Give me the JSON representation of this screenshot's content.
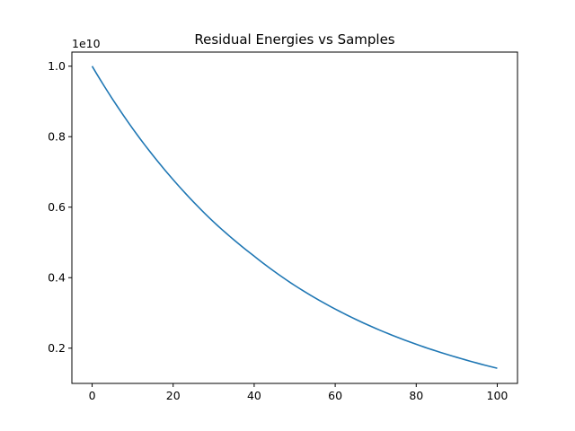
{
  "chart_data": {
    "type": "line",
    "title": "Residual Energies vs Samples",
    "xlabel": "",
    "ylabel": "",
    "offset_label": "1e10",
    "xlim": [
      -5,
      105
    ],
    "ylim": [
      0.1,
      1.04
    ],
    "xticks": [
      0,
      20,
      40,
      60,
      80,
      100
    ],
    "xtick_labels": [
      "0",
      "20",
      "40",
      "60",
      "80",
      "100"
    ],
    "yticks": [
      0.2,
      0.4,
      0.6,
      0.8,
      1.0
    ],
    "ytick_labels": [
      "0.2",
      "0.4",
      "0.6",
      "0.8",
      "1.0"
    ],
    "grid": false,
    "series": [
      {
        "color": "#1f77b4",
        "x": [
          0,
          10,
          20,
          30,
          40,
          50,
          60,
          70,
          80,
          90,
          100
        ],
        "y": [
          1.0,
          0.823,
          0.678,
          0.558,
          0.461,
          0.378,
          0.311,
          0.256,
          0.211,
          0.174,
          0.143
        ]
      }
    ]
  }
}
